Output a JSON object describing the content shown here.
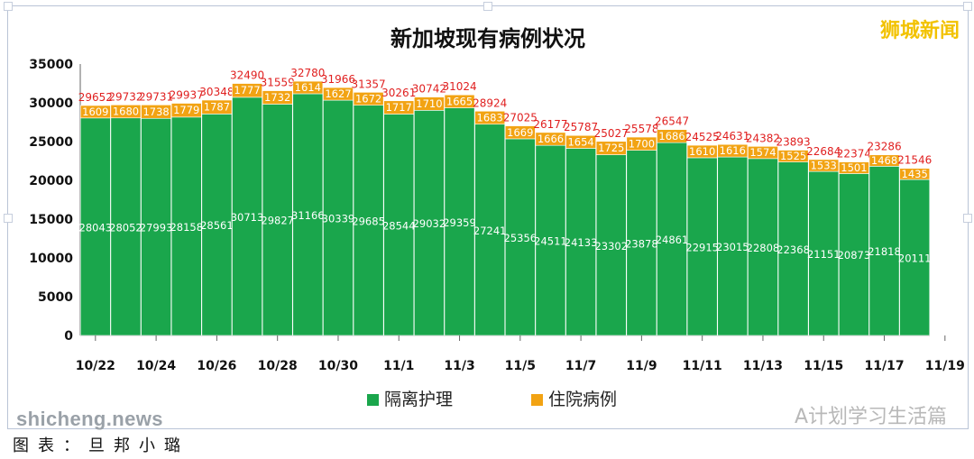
{
  "chart_data": {
    "type": "bar",
    "stacked": true,
    "title": "新加坡现有病例状况",
    "categories": [
      "10/22",
      "10/23",
      "10/24",
      "10/25",
      "10/26",
      "10/27",
      "10/28",
      "10/29",
      "10/30",
      "10/31",
      "11/1",
      "11/2",
      "11/3",
      "11/4",
      "11/5",
      "11/6",
      "11/7",
      "11/8",
      "11/9",
      "11/10",
      "11/11",
      "11/12",
      "11/13",
      "11/14",
      "11/15",
      "11/16",
      "11/17",
      "11/18"
    ],
    "x_tick_labels": [
      "10/22",
      "10/24",
      "10/26",
      "10/28",
      "10/30",
      "11/1",
      "11/3",
      "11/5",
      "11/7",
      "11/9",
      "11/11",
      "11/13",
      "11/15",
      "11/17",
      "11/19"
    ],
    "series": [
      {
        "name": "隔离护理",
        "color": "#1aa64c",
        "values": [
          28043,
          28052,
          27993,
          28158,
          28561,
          30713,
          29827,
          31166,
          30339,
          29685,
          28544,
          29032,
          29359,
          27241,
          25356,
          24511,
          24133,
          23302,
          23878,
          24861,
          22915,
          23015,
          22808,
          22368,
          21151,
          20873,
          21818,
          20111
        ]
      },
      {
        "name": "住院病例",
        "color": "#f2a313",
        "values": [
          1609,
          1680,
          1738,
          1779,
          1787,
          1777,
          1732,
          1614,
          1627,
          1672,
          1717,
          1710,
          1665,
          1683,
          1669,
          1666,
          1654,
          1725,
          1700,
          1686,
          1610,
          1616,
          1574,
          1525,
          1533,
          1501,
          1468,
          1435
        ]
      }
    ],
    "totals": [
      29652,
      29732,
      29731,
      29937,
      30348,
      32490,
      31559,
      32780,
      31966,
      31357,
      30261,
      30742,
      31024,
      28924,
      27025,
      26177,
      25787,
      25027,
      25578,
      26547,
      24525,
      24631,
      24382,
      23893,
      22684,
      22374,
      23286,
      21546
    ],
    "ylim": [
      0,
      35000
    ],
    "yticks": [
      0,
      5000,
      10000,
      15000,
      20000,
      25000,
      30000,
      35000
    ],
    "legend_position": "bottom",
    "grid": false
  },
  "watermark_brand": "狮城新闻",
  "watermark_wechat": "A计划学习生活篇",
  "watermark_site": "shicheng.news",
  "caption": "图表：旦邦小璐"
}
